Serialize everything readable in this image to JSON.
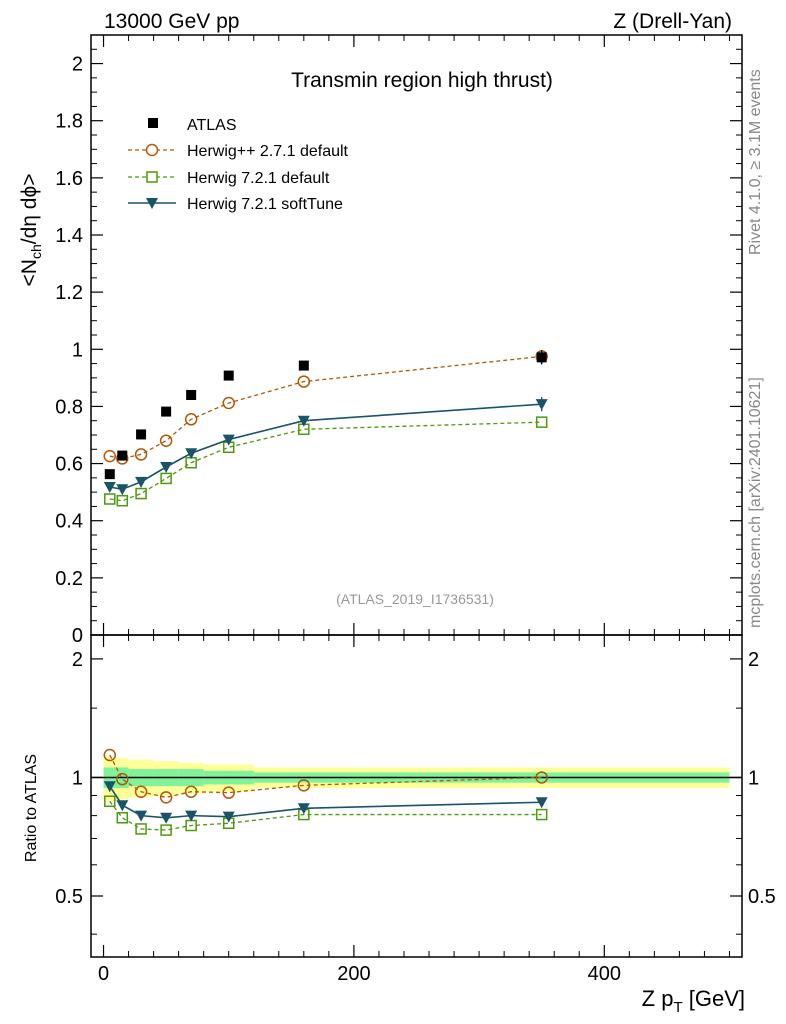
{
  "header": {
    "left": "13000 GeV pp",
    "right": "Z (Drell-Yan)"
  },
  "side": {
    "rivet": "Rivet 4.1.0, ≥ 3.1M events",
    "mcplots": "mcplots.cern.ch [arXiv:2401.10621]"
  },
  "colors": {
    "atlas": "#000000",
    "herwigpp": "#b35806",
    "herwig721": "#4d9a0a",
    "softtune": "#1a5468",
    "band_inner": "#7ff29a",
    "band_outer": "#ffff99"
  },
  "chart_data": {
    "type": "line",
    "title": "Transmin region high thrust)",
    "analysis_id": "(ATLAS_2019_I1736531)",
    "xlabel": "Z p",
    "xlabel_sub": "T",
    "xlabel_unit": " [GeV]",
    "ylabel": "<N",
    "ylabel_sub": "ch",
    "ylabel_rest": "/dη dϕ>",
    "ratio_ylabel": "Ratio to ATLAS",
    "xlim": [
      -10,
      510
    ],
    "ylim": [
      0,
      2.1
    ],
    "ratio_ylim": [
      0.35,
      2.3
    ],
    "x_ticks": [
      0,
      200,
      400
    ],
    "x_tick_labels": [
      "0",
      "200",
      "400"
    ],
    "y_ticks": [
      0,
      0.2,
      0.4,
      0.6,
      0.8,
      1,
      1.2,
      1.4,
      1.6,
      1.8,
      2
    ],
    "y_tick_labels": [
      "0",
      "0.2",
      "0.4",
      "0.6",
      "0.8",
      "1",
      "1.2",
      "1.4",
      "1.6",
      "1.8",
      "2"
    ],
    "ratio_y_ticks": [
      0.5,
      1,
      2
    ],
    "ratio_y_tick_labels": [
      "0.5",
      "1",
      "2"
    ],
    "legend": [
      "ATLAS",
      "Herwig++ 2.7.1 default",
      "Herwig 7.2.1 default",
      "Herwig 7.2.1 softTune"
    ],
    "ref_bins": [
      {
        "lo": 0,
        "hi": 10,
        "inner": 0.06,
        "outer": 0.13
      },
      {
        "lo": 10,
        "hi": 20,
        "inner": 0.06,
        "outer": 0.12
      },
      {
        "lo": 20,
        "hi": 40,
        "inner": 0.05,
        "outer": 0.11
      },
      {
        "lo": 40,
        "hi": 60,
        "inner": 0.05,
        "outer": 0.1
      },
      {
        "lo": 60,
        "hi": 80,
        "inner": 0.05,
        "outer": 0.09
      },
      {
        "lo": 80,
        "hi": 120,
        "inner": 0.04,
        "outer": 0.08
      },
      {
        "lo": 120,
        "hi": 200,
        "inner": 0.03,
        "outer": 0.06
      },
      {
        "lo": 200,
        "hi": 500,
        "inner": 0.03,
        "outer": 0.06
      }
    ],
    "series": [
      {
        "name": "ATLAS",
        "marker": "square",
        "x": [
          5,
          15,
          30,
          50,
          70,
          100,
          160,
          350
        ],
        "values": [
          0.563,
          0.628,
          0.702,
          0.782,
          0.84,
          0.908,
          0.943,
          0.972
        ],
        "errors": [
          0.01,
          0.01,
          0.01,
          0.01,
          0.01,
          0.01,
          0.01,
          0.025
        ]
      },
      {
        "name": "Herwig++ 2.7.1 default",
        "marker": "circle",
        "dashed": true,
        "x": [
          5,
          15,
          30,
          50,
          70,
          100,
          160,
          350
        ],
        "values": [
          0.626,
          0.618,
          0.632,
          0.68,
          0.755,
          0.812,
          0.887,
          0.975
        ],
        "ratio": [
          1.14,
          0.99,
          0.92,
          0.89,
          0.92,
          0.915,
          0.955,
          1.0
        ]
      },
      {
        "name": "Herwig 7.2.1 default",
        "marker": "square-open",
        "dashed": true,
        "x": [
          5,
          15,
          30,
          50,
          70,
          100,
          160,
          350
        ],
        "values": [
          0.476,
          0.47,
          0.495,
          0.548,
          0.603,
          0.657,
          0.72,
          0.745
        ],
        "ratio": [
          0.87,
          0.79,
          0.74,
          0.735,
          0.755,
          0.765,
          0.805,
          0.805
        ]
      },
      {
        "name": "Herwig 7.2.1 softTune",
        "marker": "triangle-down",
        "dashed": false,
        "x": [
          5,
          15,
          30,
          50,
          70,
          100,
          160,
          350
        ],
        "values": [
          0.518,
          0.51,
          0.536,
          0.588,
          0.636,
          0.684,
          0.75,
          0.808
        ],
        "ratio": [
          0.95,
          0.85,
          0.8,
          0.79,
          0.8,
          0.795,
          0.835,
          0.865
        ],
        "errors": [
          0.008,
          0.008,
          0.008,
          0.008,
          0.008,
          0.008,
          0.008,
          0.025
        ]
      }
    ]
  }
}
